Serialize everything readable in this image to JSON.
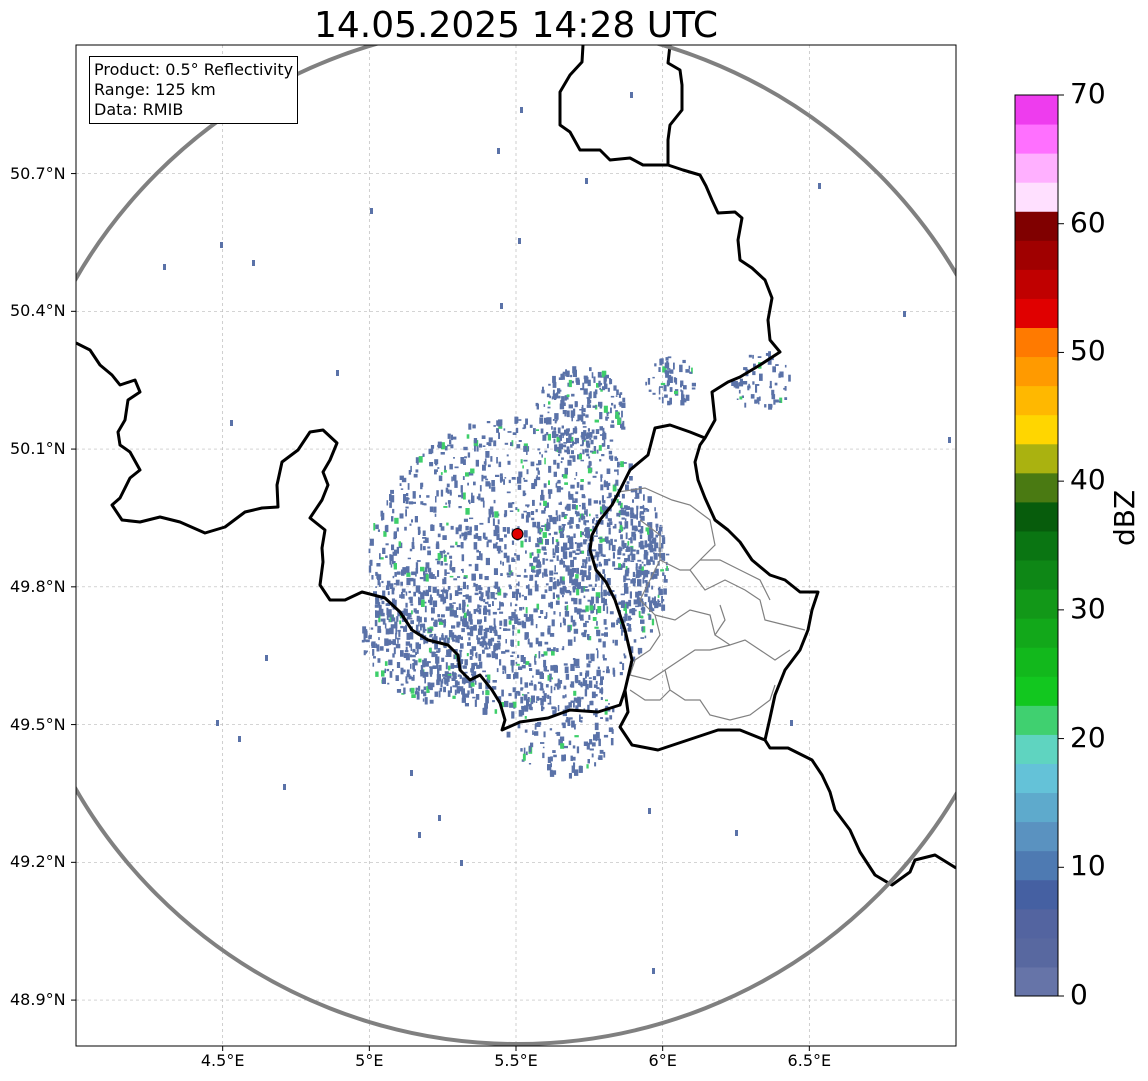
{
  "title": "14.05.2025 14:28 UTC",
  "info_box": {
    "product": "Product: 0.5° Reflectivity",
    "range": "Range: 125 km",
    "data_source": "Data: RMIB"
  },
  "map": {
    "lon_min": 4.0,
    "lon_max": 7.0,
    "lat_min": 48.8,
    "lat_max": 50.98,
    "radar_site": {
      "lon": 5.505,
      "lat": 49.915
    },
    "range_km": 125,
    "lat_ticks": [
      {
        "value": 50.7,
        "label": "50.7°N"
      },
      {
        "value": 50.4,
        "label": "50.4°N"
      },
      {
        "value": 50.1,
        "label": "50.1°N"
      },
      {
        "value": 49.8,
        "label": "49.8°N"
      },
      {
        "value": 49.5,
        "label": "49.5°N"
      },
      {
        "value": 49.2,
        "label": "49.2°N"
      },
      {
        "value": 48.9,
        "label": "48.9°N"
      }
    ],
    "lon_ticks": [
      {
        "value": 4.5,
        "label": "4.5°E"
      },
      {
        "value": 5.0,
        "label": "5°E"
      },
      {
        "value": 5.5,
        "label": "5.5°E"
      },
      {
        "value": 6.0,
        "label": "6°E"
      },
      {
        "value": 6.5,
        "label": "6.5°E"
      }
    ],
    "colors": {
      "border": "#000000",
      "district_border": "#808080",
      "range_ring": "#808080",
      "grid": "#bbbbbb",
      "radar_marker": "#e00000",
      "echo_weak": "#5a72a8",
      "echo_mid": "#3ecf6a"
    }
  },
  "colorbar": {
    "unit": "dBZ",
    "min": 0,
    "max": 70,
    "step": 2.5,
    "colors": [
      "#6674a8",
      "#5868a0",
      "#5364a0",
      "#4560a2",
      "#4e7ab2",
      "#5a92c0",
      "#5eaacc",
      "#64c2d8",
      "#5fd4c0",
      "#40d070",
      "#12c71f",
      "#12b81c",
      "#12a81a",
      "#129818",
      "#0e8716",
      "#0a7512",
      "#075c0c",
      "#4a7a12",
      "#aab210",
      "#ffd600",
      "#ffb800",
      "#ff9a00",
      "#ff7a00",
      "#e00000",
      "#c00000",
      "#a00000",
      "#800000",
      "#ffe0ff",
      "#ffb0ff",
      "#ff70ff",
      "#ee3cee"
    ],
    "ticks": [
      {
        "value": 0,
        "label": "0"
      },
      {
        "value": 10,
        "label": "10"
      },
      {
        "value": 20,
        "label": "20"
      },
      {
        "value": 30,
        "label": "30"
      },
      {
        "value": 40,
        "label": "40"
      },
      {
        "value": 50,
        "label": "50"
      },
      {
        "value": 60,
        "label": "60"
      },
      {
        "value": 70,
        "label": "70"
      }
    ]
  }
}
